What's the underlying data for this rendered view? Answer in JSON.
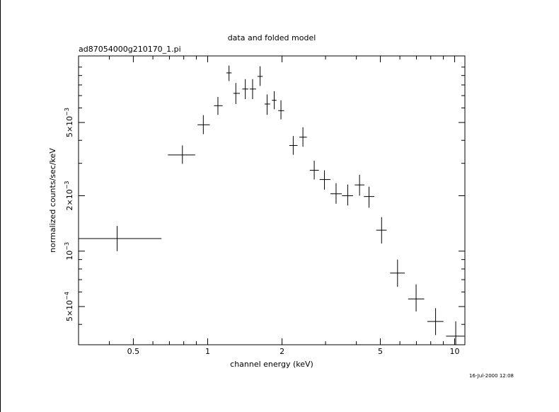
{
  "chart_data": {
    "type": "scatter",
    "title": "data and folded model",
    "subtitle": "ad87054000g210170_1.pi",
    "xlabel": "channel energy (keV)",
    "ylabel": "normalized counts/sec/keV",
    "xscale": "log",
    "yscale": "log",
    "xlim": [
      0.3,
      11
    ],
    "ylim": [
      0.00031,
      0.0115
    ],
    "x_ticks": [
      {
        "value": 0.5,
        "label": "0.5"
      },
      {
        "value": 1,
        "label": "1"
      },
      {
        "value": 2,
        "label": "2"
      },
      {
        "value": 5,
        "label": "5"
      },
      {
        "value": 10,
        "label": "10"
      }
    ],
    "y_ticks": [
      {
        "value": 0.0005,
        "mant": "5×10",
        "exp": "−4"
      },
      {
        "value": 0.001,
        "mant": "10",
        "exp": "−3"
      },
      {
        "value": 0.002,
        "mant": "2×10",
        "exp": "−3"
      },
      {
        "value": 0.005,
        "mant": "5×10",
        "exp": "−3"
      }
    ],
    "points": [
      {
        "x": 0.43,
        "xlo": 0.3,
        "xhi": 0.65,
        "y": 0.00117,
        "ylo": 0.001,
        "yhi": 0.00137
      },
      {
        "x": 0.79,
        "xlo": 0.69,
        "xhi": 0.89,
        "y": 0.00333,
        "ylo": 0.00298,
        "yhi": 0.00375
      },
      {
        "x": 0.96,
        "xlo": 0.91,
        "xhi": 1.02,
        "y": 0.00486,
        "ylo": 0.00432,
        "yhi": 0.00548
      },
      {
        "x": 1.1,
        "xlo": 1.06,
        "xhi": 1.15,
        "y": 0.00617,
        "ylo": 0.0055,
        "yhi": 0.00688
      },
      {
        "x": 1.22,
        "xlo": 1.19,
        "xhi": 1.25,
        "y": 0.0093,
        "ylo": 0.0084,
        "yhi": 0.0102
      },
      {
        "x": 1.3,
        "xlo": 1.27,
        "xhi": 1.35,
        "y": 0.0072,
        "ylo": 0.0063,
        "yhi": 0.0082
      },
      {
        "x": 1.42,
        "xlo": 1.38,
        "xhi": 1.46,
        "y": 0.0076,
        "ylo": 0.0067,
        "yhi": 0.0086
      },
      {
        "x": 1.52,
        "xlo": 1.48,
        "xhi": 1.57,
        "y": 0.0076,
        "ylo": 0.0067,
        "yhi": 0.0086
      },
      {
        "x": 1.63,
        "xlo": 1.59,
        "xhi": 1.67,
        "y": 0.0089,
        "ylo": 0.0079,
        "yhi": 0.0101
      },
      {
        "x": 1.74,
        "xlo": 1.7,
        "xhi": 1.79,
        "y": 0.0063,
        "ylo": 0.0055,
        "yhi": 0.0071
      },
      {
        "x": 1.86,
        "xlo": 1.82,
        "xhi": 1.9,
        "y": 0.0066,
        "ylo": 0.0059,
        "yhi": 0.0074
      },
      {
        "x": 1.98,
        "xlo": 1.93,
        "xhi": 2.04,
        "y": 0.0058,
        "ylo": 0.0052,
        "yhi": 0.0066
      },
      {
        "x": 2.22,
        "xlo": 2.14,
        "xhi": 2.31,
        "y": 0.00375,
        "ylo": 0.00334,
        "yhi": 0.00422
      },
      {
        "x": 2.43,
        "xlo": 2.35,
        "xhi": 2.52,
        "y": 0.00416,
        "ylo": 0.00369,
        "yhi": 0.00471
      },
      {
        "x": 2.7,
        "xlo": 2.59,
        "xhi": 2.82,
        "y": 0.00275,
        "ylo": 0.00245,
        "yhi": 0.0031
      },
      {
        "x": 2.97,
        "xlo": 2.84,
        "xhi": 3.14,
        "y": 0.00245,
        "ylo": 0.00216,
        "yhi": 0.00275
      },
      {
        "x": 3.31,
        "xlo": 3.14,
        "xhi": 3.49,
        "y": 0.00205,
        "ylo": 0.00181,
        "yhi": 0.00234
      },
      {
        "x": 3.69,
        "xlo": 3.5,
        "xhi": 3.88,
        "y": 0.002,
        "ylo": 0.00177,
        "yhi": 0.0023
      },
      {
        "x": 4.12,
        "xlo": 3.94,
        "xhi": 4.31,
        "y": 0.00229,
        "ylo": 0.002,
        "yhi": 0.0026
      },
      {
        "x": 4.5,
        "xlo": 4.29,
        "xhi": 4.73,
        "y": 0.00198,
        "ylo": 0.00172,
        "yhi": 0.00224
      },
      {
        "x": 5.06,
        "xlo": 4.81,
        "xhi": 5.3,
        "y": 0.0013,
        "ylo": 0.0011,
        "yhi": 0.00153
      },
      {
        "x": 5.87,
        "xlo": 5.48,
        "xhi": 6.28,
        "y": 0.00076,
        "ylo": 0.00064,
        "yhi": 0.0009
      },
      {
        "x": 6.98,
        "xlo": 6.48,
        "xhi": 7.53,
        "y": 0.00055,
        "ylo": 0.00047,
        "yhi": 0.00066
      },
      {
        "x": 8.37,
        "xlo": 7.75,
        "xhi": 9.01,
        "y": 0.000415,
        "ylo": 0.00035,
        "yhi": 0.00049
      },
      {
        "x": 10.1,
        "xlo": 9.23,
        "xhi": 10.95,
        "y": 0.000345,
        "ylo": 0.00031,
        "yhi": 0.000415
      }
    ]
  },
  "footer": {
    "timestamp": "16-Jul-2000 12:08"
  }
}
